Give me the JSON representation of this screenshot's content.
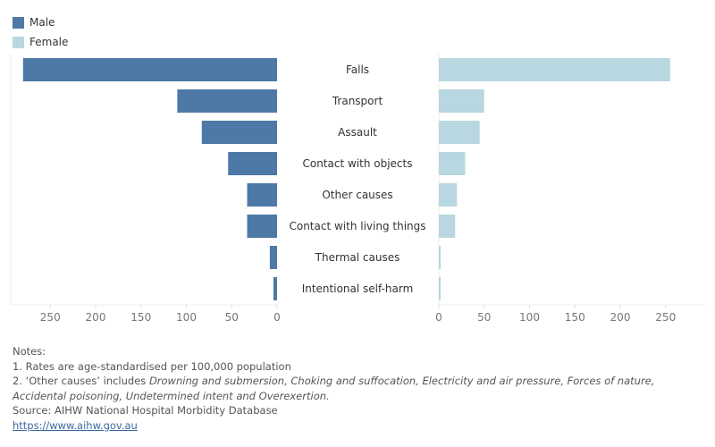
{
  "chart_data": {
    "type": "bar",
    "orientation": "horizontal-butterfly",
    "categories": [
      "Falls",
      "Transport",
      "Assault",
      "Contact with objects",
      "Other causes",
      "Contact with living things",
      "Thermal causes",
      "Intentional self-harm"
    ],
    "series": [
      {
        "name": "Male",
        "color": "#4e79a7",
        "side": "left",
        "values": [
          280,
          110,
          83,
          54,
          33,
          33,
          8,
          4
        ]
      },
      {
        "name": "Female",
        "color": "#b8d7e0",
        "side": "right",
        "values": [
          255,
          50,
          45,
          29,
          20,
          18,
          2,
          2
        ]
      }
    ],
    "xlim": [
      0,
      293
    ],
    "ticks": [
      0,
      50,
      100,
      150,
      200,
      250
    ],
    "legend": "top-left",
    "grid": false
  },
  "notes": {
    "heading": "Notes:",
    "note1": "1. Rates are age-standardised per 100,000 population",
    "note2_prefix": "2. ‘Other causes’ includes ",
    "note2_italic": "Drowning and submersion, Choking and suffocation, Electricity  and air pressure, Forces of nature, Accidental poisoning, Undetermined intent and Overexertion.",
    "source": "Source: AIHW National Hospital Morbidity Database",
    "link": "https://www.aihw.gov.au"
  }
}
